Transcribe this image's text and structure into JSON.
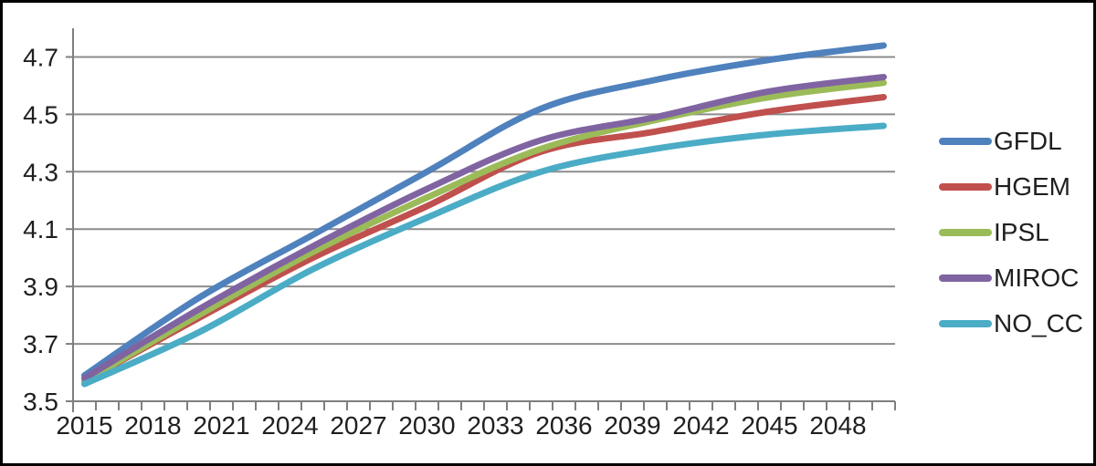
{
  "chart_data": {
    "type": "line",
    "title": "",
    "xlabel": "",
    "ylabel": "",
    "x": [
      2015,
      2020,
      2025,
      2030,
      2035,
      2040,
      2045,
      2050
    ],
    "series": [
      {
        "name": "GFDL",
        "color": "#4F81BD",
        "values": [
          3.59,
          3.86,
          4.08,
          4.3,
          4.52,
          4.62,
          4.69,
          4.74
        ]
      },
      {
        "name": "HGEM",
        "color": "#C0504D",
        "values": [
          3.57,
          3.79,
          4.0,
          4.18,
          4.37,
          4.44,
          4.51,
          4.56
        ]
      },
      {
        "name": "IPSL",
        "color": "#9BBB59",
        "values": [
          3.57,
          3.8,
          4.02,
          4.21,
          4.38,
          4.48,
          4.56,
          4.61
        ]
      },
      {
        "name": "MIROC",
        "color": "#8064A2",
        "values": [
          3.58,
          3.82,
          4.04,
          4.24,
          4.41,
          4.49,
          4.58,
          4.63
        ]
      },
      {
        "name": "NO_CC",
        "color": "#4BACC6",
        "values": [
          3.56,
          3.74,
          3.96,
          4.14,
          4.3,
          4.38,
          4.43,
          4.46
        ]
      }
    ],
    "ylim": [
      3.5,
      4.8
    ],
    "xlim": [
      2014.5,
      2050.5
    ],
    "yticks": [
      3.5,
      3.7,
      3.9,
      4.1,
      4.3,
      4.5,
      4.7
    ],
    "xticks": [
      2015,
      2018,
      2021,
      2024,
      2027,
      2030,
      2033,
      2036,
      2039,
      2042,
      2045,
      2048
    ],
    "minor_xtick_interval_years": 1,
    "grid": "horizontal",
    "smoothed_lines": true,
    "legend_position": "right",
    "line_width": 7,
    "gridline_color": "#8C8C8C",
    "axis_color": "#7F7F7F",
    "tick_label_color": "#1F1F1F",
    "background_color": "#FFFFFF",
    "frame_color": "#000000"
  }
}
